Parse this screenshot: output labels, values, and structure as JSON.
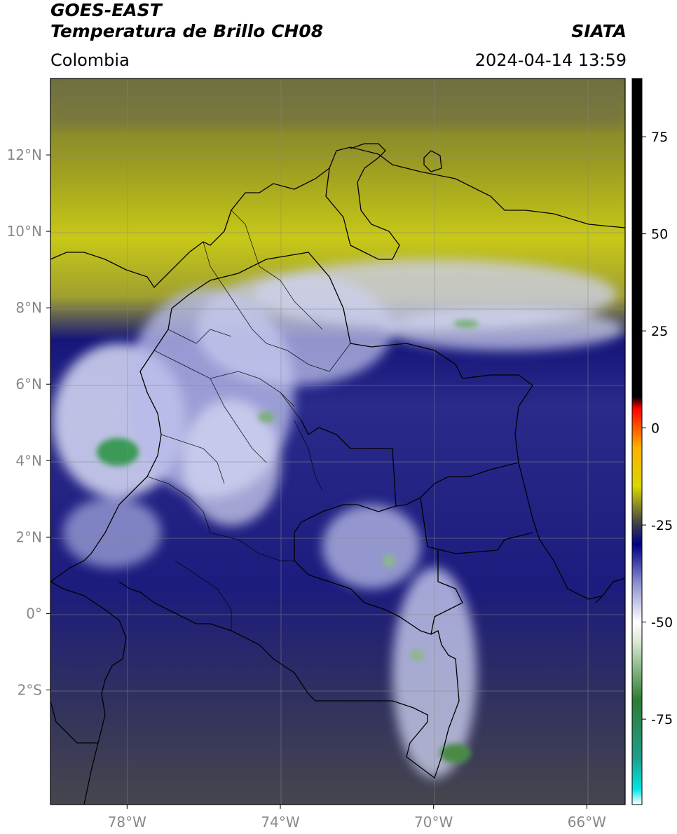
{
  "header": {
    "satellite": "GOES-EAST",
    "product": "Temperatura de Brillo CH08",
    "region": "Colombia",
    "agency": "SIATA",
    "datetime": "2024-04-14 13:59"
  },
  "map": {
    "lon_range": [
      -80,
      -65
    ],
    "lat_range": [
      -5,
      14
    ],
    "lon_ticks": [
      {
        "value": -78,
        "label": "78°W"
      },
      {
        "value": -74,
        "label": "74°W"
      },
      {
        "value": -70,
        "label": "70°W"
      },
      {
        "value": -66,
        "label": "66°W"
      }
    ],
    "lat_ticks": [
      {
        "value": 12,
        "label": "12°N"
      },
      {
        "value": 10,
        "label": "10°N"
      },
      {
        "value": 8,
        "label": "8°N"
      },
      {
        "value": 6,
        "label": "6°N"
      },
      {
        "value": 4,
        "label": "4°N"
      },
      {
        "value": 2,
        "label": "2°N"
      },
      {
        "value": 0,
        "label": "0°"
      },
      {
        "value": -2,
        "label": "2°S"
      }
    ],
    "grid": true
  },
  "colorbar": {
    "range": [
      -97,
      90
    ],
    "ticks": [
      {
        "value": 75,
        "label": "75"
      },
      {
        "value": 50,
        "label": "50"
      },
      {
        "value": 25,
        "label": "25"
      },
      {
        "value": 0,
        "label": "0"
      },
      {
        "value": -25,
        "label": "-25"
      },
      {
        "value": -50,
        "label": "-50"
      },
      {
        "value": -75,
        "label": "-75"
      }
    ],
    "stops": [
      {
        "value": -97,
        "color": "#ffffff"
      },
      {
        "value": -93,
        "color": "#00e5e5"
      },
      {
        "value": -85,
        "color": "#1f9e8a"
      },
      {
        "value": -70,
        "color": "#2e7d32"
      },
      {
        "value": -55,
        "color": "#d9ead3"
      },
      {
        "value": -50,
        "color": "#ffffff"
      },
      {
        "value": -40,
        "color": "#8c90d0"
      },
      {
        "value": -30,
        "color": "#000088"
      },
      {
        "value": -25,
        "color": "#3a3a4a"
      },
      {
        "value": -15,
        "color": "#d8d800"
      },
      {
        "value": -5,
        "color": "#ffb000"
      },
      {
        "value": 5,
        "color": "#ff0000"
      },
      {
        "value": 8,
        "color": "#000000"
      },
      {
        "value": 90,
        "color": "#000000"
      }
    ]
  }
}
